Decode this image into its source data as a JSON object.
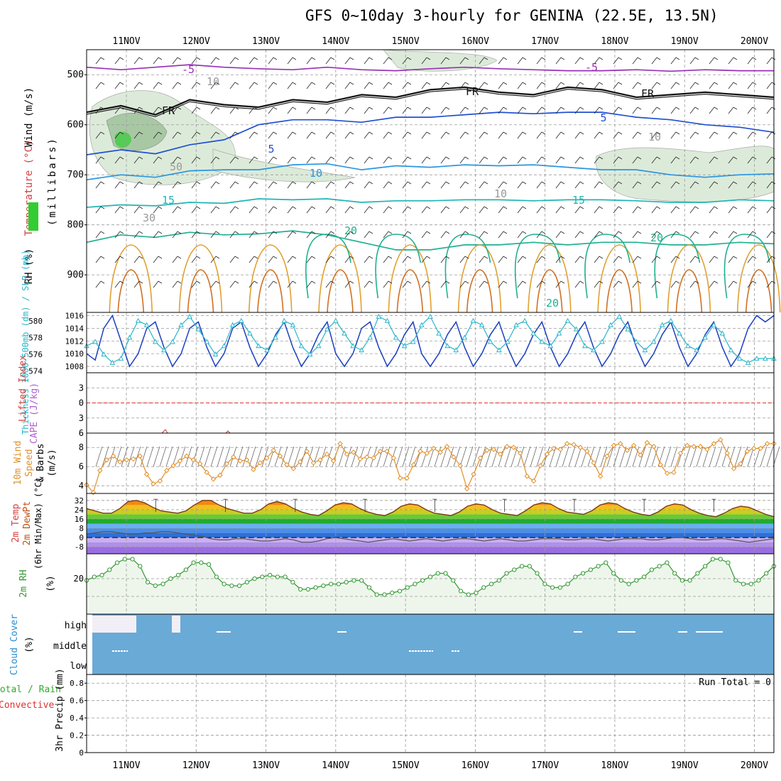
{
  "title": "GFS 0~10day 3-hourly for GENINA (22.5E, 13.5N)",
  "dates": [
    "11NOV",
    "12NOV",
    "13NOV",
    "14NOV",
    "15NOV",
    "16NOV",
    "17NOV",
    "18NOV",
    "19NOV",
    "20NOV"
  ],
  "colors": {
    "grid": "#999999",
    "rh_fill": "#dcebd9",
    "slp": "#1a3fc0",
    "thickness": "#2bb5c9",
    "lifted_zero": "#e03030",
    "wind": "#e0902a",
    "cloud": "#6aaad6",
    "rh2m": "#339933"
  },
  "chart_data": [
    {
      "type": "line",
      "panel": "upper_air_cross_section",
      "ylabel_parts": [
        "Wind (m/s)",
        "Temperature (°C)",
        "RH (%)"
      ],
      "yaxis_unit": "(millibars)",
      "y_ticks": [
        500,
        600,
        700,
        800,
        900
      ],
      "ylim": [
        450,
        975
      ],
      "contour_labels": [
        "-5",
        "-5",
        "FR",
        "FR",
        "FR",
        "5",
        "5",
        "10",
        "10",
        "15",
        "15",
        "20",
        "20",
        "20",
        "10",
        "10",
        "30",
        "50"
      ],
      "series": [
        {
          "name": "-5",
          "color": "#9a2fb5",
          "values": [
            485,
            490,
            485,
            480,
            485,
            488,
            490,
            485,
            490,
            492,
            488,
            485,
            488,
            490,
            492,
            492,
            490,
            493,
            490,
            492,
            492
          ]
        },
        {
          "name": "FR",
          "color": "#111111",
          "values": [
            575,
            562,
            580,
            550,
            560,
            565,
            550,
            555,
            540,
            545,
            530,
            525,
            535,
            540,
            525,
            530,
            545,
            540,
            535,
            540,
            545
          ]
        },
        {
          "name": "5",
          "color": "#2050d0",
          "values": [
            660,
            650,
            658,
            640,
            630,
            600,
            590,
            590,
            595,
            585,
            585,
            580,
            575,
            578,
            575,
            575,
            585,
            590,
            600,
            605,
            615
          ]
        },
        {
          "name": "10",
          "color": "#2a95e0",
          "values": [
            710,
            700,
            705,
            692,
            690,
            690,
            680,
            678,
            690,
            682,
            685,
            680,
            682,
            680,
            685,
            690,
            690,
            700,
            705,
            700,
            698
          ]
        },
        {
          "name": "15",
          "color": "#20b5b5",
          "values": [
            765,
            760,
            762,
            755,
            757,
            748,
            750,
            748,
            755,
            752,
            752,
            750,
            750,
            752,
            750,
            750,
            752,
            755,
            755,
            750,
            752
          ]
        },
        {
          "name": "20",
          "color": "#20b090",
          "values": [
            835,
            820,
            825,
            815,
            820,
            818,
            812,
            820,
            835,
            850,
            850,
            840,
            840,
            835,
            840,
            835,
            835,
            840,
            840,
            835,
            838
          ]
        }
      ]
    },
    {
      "type": "line",
      "panel": "slp_thickness",
      "ylabel": "Thickness 1000-500mb (dm) / SLP (mb)",
      "y_ticks_left": [
        574,
        576,
        578,
        580
      ],
      "y_ticks_right": [
        1008,
        1010,
        1012,
        1014,
        1016
      ],
      "series": [
        {
          "name": "SLP",
          "color": "#1a3fc0",
          "values": [
            1010,
            1009,
            1014,
            1016,
            1012,
            1008,
            1010,
            1014,
            1015,
            1011,
            1008,
            1010,
            1014,
            1015,
            1011,
            1008,
            1010,
            1014,
            1015,
            1011,
            1008,
            1010,
            1013,
            1015,
            1011,
            1008,
            1010,
            1013,
            1015,
            1010,
            1008,
            1010,
            1014,
            1015,
            1011,
            1008,
            1010,
            1013,
            1015,
            1010,
            1008,
            1010,
            1013,
            1015,
            1011,
            1008,
            1010,
            1013,
            1015,
            1011,
            1008,
            1010,
            1013,
            1015,
            1011,
            1008,
            1010,
            1013,
            1015,
            1011,
            1008,
            1010,
            1013,
            1015,
            1011,
            1008,
            1010,
            1013,
            1015,
            1011,
            1008,
            1010,
            1013,
            1015,
            1011,
            1008,
            1010,
            1014,
            1016,
            1015,
            1016
          ]
        },
        {
          "name": "Thickness",
          "color": "#2bb5c9",
          "values": [
            577,
            577.5,
            576,
            575,
            575.5,
            578,
            580,
            579.5,
            577.5,
            576.5,
            577.5,
            579.5,
            580.5,
            579,
            577.5,
            576,
            577,
            579.5,
            580,
            578.5,
            577,
            576.5,
            578,
            580,
            579.5,
            577,
            576,
            577,
            579,
            580,
            578.5,
            577,
            576.5,
            578,
            580.5,
            580,
            578,
            577,
            577.5,
            579.5,
            580.5,
            578.5,
            577,
            576.5,
            578,
            580,
            579.5,
            577.5,
            576.5,
            577.5,
            579.5,
            580,
            578.5,
            577.5,
            577,
            578.5,
            580,
            579,
            577,
            576.5,
            577.5,
            579.5,
            580.5,
            579,
            577.5,
            576.5,
            577.5,
            579.5,
            580,
            578.5,
            577,
            576.5,
            578,
            579.5,
            578.5,
            576.5,
            575.5,
            575,
            575.5,
            575.5,
            575.5
          ]
        }
      ]
    },
    {
      "type": "line",
      "panel": "lifted_index_cape",
      "ylabel_parts": [
        "Lifted Index",
        "CAPE (J/kg)"
      ],
      "y_ticks": [
        -3,
        0,
        3,
        6
      ],
      "y_tick_labels": [
        "3",
        "0",
        "3",
        "6"
      ],
      "ylim": [
        -6,
        6
      ],
      "zero_line": 0
    },
    {
      "type": "line",
      "panel": "wind10m",
      "ylabel_parts": [
        "10m Wind",
        "Speed",
        "& Barbs",
        "(m/s)"
      ],
      "y_ticks": [
        4,
        6,
        8
      ],
      "ylim": [
        3.2,
        9.5
      ],
      "series": [
        {
          "name": "10m Wind Speed",
          "color": "#e0902a",
          "values": [
            4.1,
            3.3,
            5.6,
            6.7,
            7.1,
            6.5,
            6.7,
            6.8,
            7.1,
            5.2,
            4.2,
            4.5,
            5.6,
            6.1,
            6.6,
            7.1,
            6.7,
            6.3,
            5.4,
            4.7,
            5.1,
            6.3,
            7.0,
            6.6,
            6.7,
            5.7,
            6.4,
            6.9,
            7.7,
            7.1,
            6.2,
            5.8,
            6.5,
            7.6,
            6.4,
            6.7,
            7.3,
            6.6,
            8.4,
            7.3,
            7.5,
            6.8,
            7.0,
            6.9,
            7.6,
            7.6,
            6.9,
            4.8,
            4.8,
            6.2,
            7.6,
            7.4,
            7.9,
            7.5,
            8.1,
            7.0,
            6.1,
            3.7,
            5.2,
            6.9,
            7.7,
            7.8,
            7.3,
            8.1,
            8.0,
            7.4,
            5.0,
            4.5,
            6.1,
            7.3,
            7.9,
            7.8,
            8.4,
            8.3,
            8.0,
            7.6,
            6.4,
            5.0,
            7.1,
            8.2,
            8.4,
            7.7,
            8.2,
            7.2,
            8.5,
            8.1,
            6.2,
            5.3,
            5.4,
            7.4,
            8.2,
            8.1,
            8.1,
            7.8,
            8.4,
            8.8,
            7.4,
            5.8,
            6.3,
            7.6,
            7.9,
            7.9,
            8.4,
            8.4
          ]
        }
      ]
    },
    {
      "type": "line",
      "panel": "temp_dewpoint",
      "ylabel_parts": [
        "2m Temp",
        "2m DewPt",
        "(6hr Min/Max) (°C)"
      ],
      "y_ticks": [
        -8,
        0,
        8,
        16,
        24,
        32
      ],
      "ylim": [
        -14,
        38
      ],
      "series": [
        {
          "name": "2m Temp",
          "color": "#7a3b10",
          "values": [
            25,
            23,
            21,
            21,
            25,
            31,
            32,
            30,
            26,
            23,
            22,
            21,
            23,
            28,
            32,
            32,
            28,
            25,
            23,
            21,
            21,
            24,
            29,
            31,
            29,
            25,
            22,
            20,
            19,
            23,
            28,
            30,
            29,
            25,
            22,
            20,
            19,
            22,
            27,
            29,
            28,
            24,
            21,
            20,
            19,
            22,
            27,
            29,
            28,
            24,
            21,
            20,
            19,
            23,
            28,
            30,
            29,
            25,
            22,
            21,
            20,
            23,
            28,
            30,
            29,
            25,
            22,
            20,
            19,
            22,
            27,
            29,
            28,
            24,
            21,
            19,
            18,
            21,
            25,
            27,
            26,
            23,
            20,
            18
          ]
        },
        {
          "name": "2m DewPt",
          "color": "#555555",
          "values": [
            3,
            4,
            5,
            5,
            4,
            3,
            3,
            4,
            4,
            5,
            5,
            4,
            3,
            2,
            1,
            -1,
            -2,
            -2,
            -1,
            -1,
            -2,
            -3,
            -3,
            -2,
            -1,
            -2,
            -4,
            -4,
            -3,
            -1,
            0,
            -1,
            -2,
            -3,
            -4,
            -3,
            -2,
            -1,
            -2,
            -3,
            -2,
            -1,
            -2,
            -3,
            -2,
            -1,
            -1,
            -2,
            -3,
            -2,
            -1,
            -2,
            -3,
            -3,
            -2,
            -1,
            -1,
            -1,
            -2,
            -2,
            -1,
            -1,
            -2,
            -3,
            -2,
            -1,
            -1,
            -1,
            -2,
            -2,
            -1,
            0,
            0,
            -1,
            -2,
            -2,
            -1,
            -1,
            -2,
            -3,
            -4,
            -3,
            -2,
            -1
          ]
        }
      ]
    },
    {
      "type": "line",
      "panel": "rh2m",
      "ylabel_parts": [
        "2m RH",
        "(%)"
      ],
      "y_ticks": [
        20
      ],
      "ylim": [
        10,
        27
      ],
      "series": [
        {
          "name": "2m RH",
          "color": "#339933",
          "values": [
            19.5,
            20.5,
            21,
            22.5,
            24.5,
            25.5,
            25.5,
            23.5,
            19,
            18,
            18.5,
            20,
            21,
            22.5,
            24.5,
            24.5,
            24,
            20.5,
            18.5,
            18,
            18,
            19,
            20,
            20.5,
            21,
            20.5,
            20.5,
            19,
            17,
            17,
            17.5,
            18,
            18.5,
            18.5,
            19,
            19.5,
            19.5,
            17.5,
            15.5,
            15.5,
            16,
            16.5,
            17.5,
            18.5,
            19.5,
            20.5,
            21.5,
            21.5,
            19.5,
            16.5,
            15.5,
            16,
            17.5,
            18.5,
            19.5,
            21.5,
            22.5,
            23.5,
            23.5,
            21.5,
            18.5,
            17.5,
            17.5,
            18.5,
            20.5,
            21.5,
            22.5,
            23.5,
            24.5,
            21.5,
            19.5,
            18.5,
            19.5,
            20.5,
            22.5,
            23.5,
            24.5,
            21.5,
            19.5,
            19.5,
            21.5,
            23.5,
            25.5,
            25.5,
            24.5,
            19.5,
            18.5,
            18.5,
            19.5,
            21.5,
            23.5
          ]
        }
      ]
    },
    {
      "type": "heatmap",
      "panel": "cloud_cover",
      "ylabel_parts": [
        "Cloud Cover",
        "(%)"
      ],
      "levels": [
        "high",
        "middle",
        "low"
      ]
    },
    {
      "type": "bar",
      "panel": "precip",
      "ylabel_parts": [
        "Total / Rain",
        "Convective",
        "3hr Precip (mm)"
      ],
      "y_ticks": [
        0,
        0.2,
        0.4,
        0.6,
        0.8
      ],
      "y_tick_labels": [
        "0",
        "0.2",
        "0.4",
        "0.6",
        "0.8"
      ],
      "ylim": [
        0,
        0.9
      ],
      "annotation": "Run Total = 0"
    }
  ]
}
